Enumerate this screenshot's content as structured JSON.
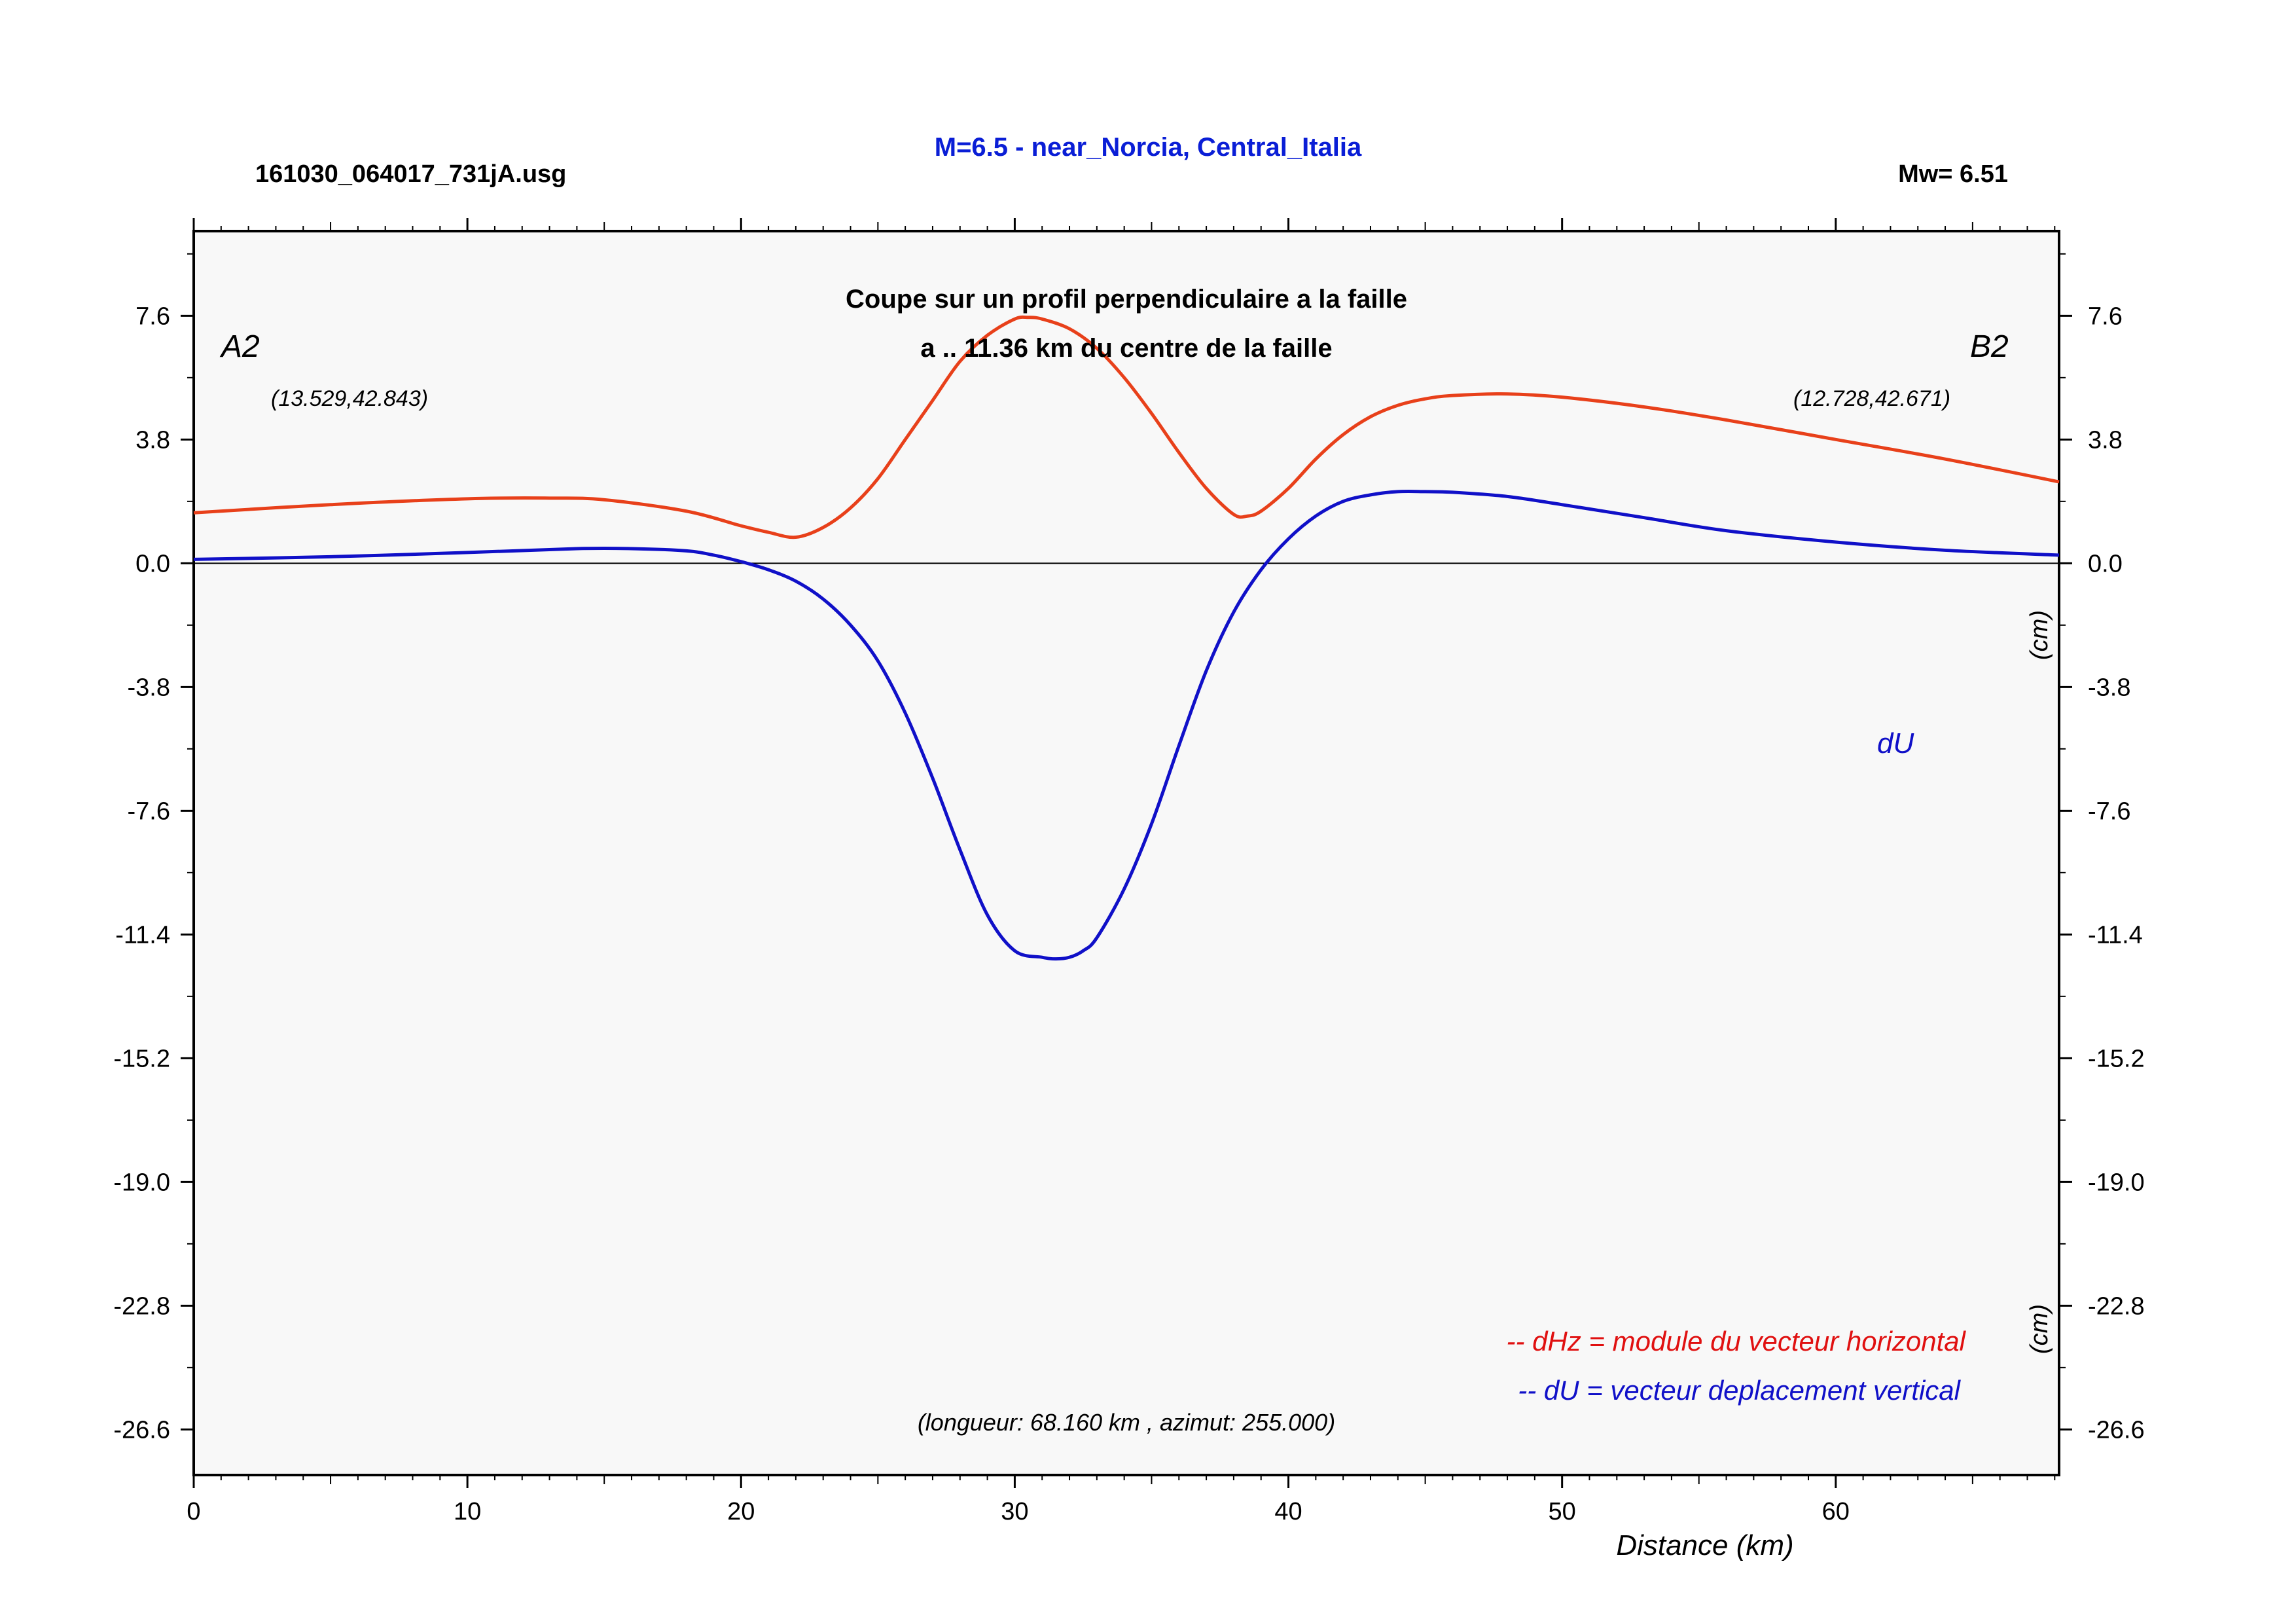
{
  "header": {
    "filename": "161030_064017_731jA.usg",
    "title": "M=6.5 - near_Norcia, Central_Italia",
    "magnitude": "Mw= 6.51"
  },
  "colors": {
    "dHz": "#e8401a",
    "dU": "#1010c8",
    "title": "#0a1ed6",
    "plot_bg": "#f8f8f8",
    "legend_dHz": "#e01010"
  },
  "chart_data": {
    "type": "line",
    "subtitle_line1": "Coupe sur un profil perpendiculaire a la faille",
    "subtitle_line2": "a .. 11.36 km du centre de la faille",
    "xlabel": "Distance (km)",
    "ylabel": "(cm)",
    "xlim": [
      0,
      68.16
    ],
    "ylim": [
      -28.0,
      10.2
    ],
    "xticks": [
      0,
      10,
      20,
      30,
      40,
      50,
      60
    ],
    "yticks": [
      "7.6",
      "3.8",
      "0.0",
      "-3.8",
      "-7.6",
      "-11.4",
      "-15.2",
      "-19.0",
      "-22.8",
      "-26.6"
    ],
    "zero_line": true,
    "grid": false,
    "point_A": {
      "label": "A2",
      "coords": "(13.529,42.843)"
    },
    "point_B": {
      "label": "B2",
      "coords": "(12.728,42.671)"
    },
    "series_label": "dU",
    "legend": [
      {
        "text": "-- dHz = module du vecteur horizontal",
        "series": "dHz"
      },
      {
        "text": "-- dU =  vecteur deplacement vertical",
        "series": "dU"
      }
    ],
    "legend_position": "bottom-right",
    "profile_info": "(longueur: 68.160 km , azimut: 255.000)",
    "series": [
      {
        "name": "dHz",
        "x": [
          0,
          5,
          10,
          13,
          15,
          18,
          20,
          21,
          22,
          23,
          24,
          25,
          26,
          27,
          28,
          29,
          30,
          30.5,
          31,
          32,
          33,
          34,
          35,
          36,
          37,
          38,
          38.5,
          39,
          40,
          41,
          42,
          43,
          44,
          45,
          46,
          48,
          50,
          53,
          56,
          60,
          64,
          68.16
        ],
        "values": [
          1.55,
          1.8,
          1.98,
          2.0,
          1.95,
          1.6,
          1.15,
          0.95,
          0.8,
          1.1,
          1.7,
          2.6,
          3.8,
          5.0,
          6.2,
          7.0,
          7.5,
          7.55,
          7.5,
          7.2,
          6.6,
          5.7,
          4.6,
          3.4,
          2.3,
          1.5,
          1.45,
          1.6,
          2.3,
          3.2,
          3.95,
          4.5,
          4.85,
          5.05,
          5.15,
          5.2,
          5.1,
          4.8,
          4.4,
          3.8,
          3.2,
          2.5
        ]
      },
      {
        "name": "dU",
        "x": [
          0,
          5,
          10,
          14,
          16,
          18,
          19,
          20,
          21,
          22,
          23,
          24,
          25,
          26,
          27,
          28,
          29,
          30,
          31,
          31.5,
          32,
          32.5,
          33,
          34,
          35,
          36,
          37,
          38,
          39,
          40,
          41,
          42,
          43,
          44,
          45,
          46,
          48,
          50,
          53,
          56,
          60,
          64,
          68.16
        ],
        "values": [
          0.12,
          0.2,
          0.33,
          0.45,
          0.45,
          0.38,
          0.25,
          0.05,
          -0.2,
          -0.55,
          -1.1,
          -1.9,
          -3.0,
          -4.6,
          -6.6,
          -8.8,
          -10.8,
          -11.9,
          -12.1,
          -12.15,
          -12.1,
          -11.9,
          -11.5,
          -10.0,
          -8.0,
          -5.6,
          -3.3,
          -1.5,
          -0.2,
          0.75,
          1.45,
          1.9,
          2.1,
          2.2,
          2.2,
          2.18,
          2.05,
          1.8,
          1.4,
          1.0,
          0.65,
          0.4,
          0.25
        ]
      }
    ]
  }
}
